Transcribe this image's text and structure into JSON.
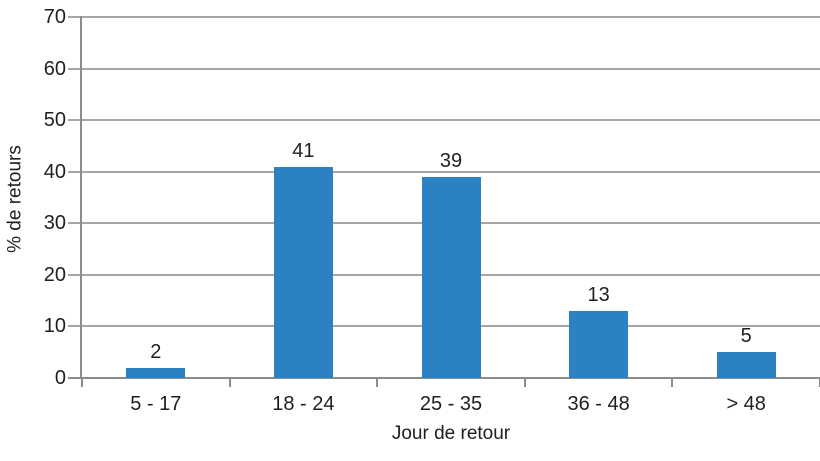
{
  "chart_data": {
    "type": "bar",
    "title": "",
    "categories": [
      "5 - 17",
      "18 - 24",
      "25 - 35",
      "36 - 48",
      "> 48"
    ],
    "values": [
      2,
      41,
      39,
      13,
      5
    ],
    "data_labels": [
      "2",
      "41",
      "39",
      "13",
      "5"
    ],
    "xlabel": "Jour de retour",
    "ylabel": "% de retours",
    "ylim": [
      0,
      70
    ],
    "ytick_step": 10,
    "ytick_labels": [
      "0",
      "10",
      "20",
      "30",
      "40",
      "50",
      "60",
      "70"
    ],
    "grid": true,
    "legend": "none",
    "colors": {
      "bar": "#2b81c1",
      "gridline": "#a6a6a6",
      "axis": "#8c8c8c",
      "text": "#1f1f1f",
      "background": "#ffffff"
    }
  }
}
